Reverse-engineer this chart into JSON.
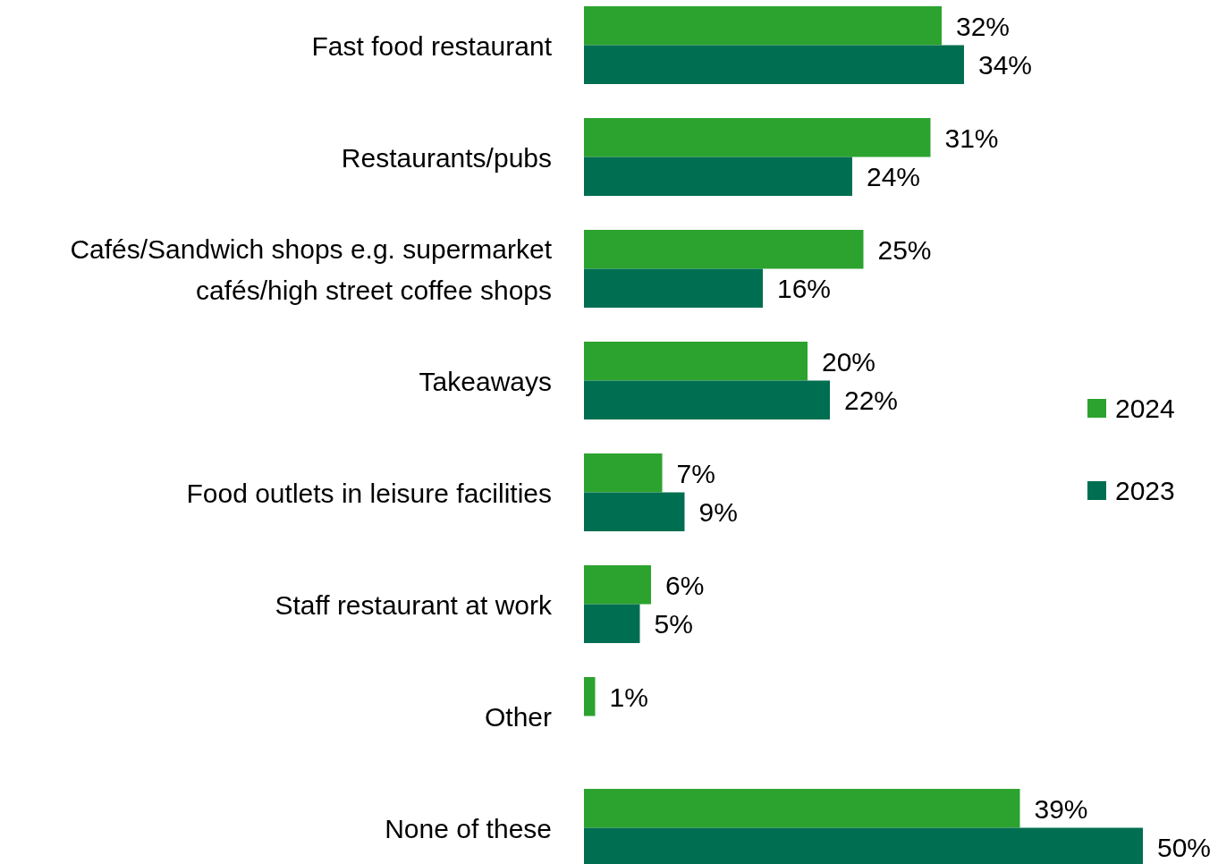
{
  "chart_data": {
    "type": "bar",
    "orientation": "horizontal",
    "categories": [
      "Fast food restaurant",
      "Restaurants/pubs",
      "Cafés/Sandwich shops e.g. supermarket cafés/high street coffee shops",
      "Takeaways",
      "Food outlets in leisure facilities",
      "Staff restaurant at work",
      "Other",
      "None of these"
    ],
    "series": [
      {
        "name": "2024",
        "color": "#2ca32e",
        "values": [
          32,
          31,
          25,
          20,
          7,
          6,
          1,
          39
        ],
        "value_labels": [
          "32%",
          "31%",
          "25%",
          "20%",
          "7%",
          "6%",
          "1%",
          "39%"
        ]
      },
      {
        "name": "2023",
        "color": "#006f51",
        "values": [
          34,
          24,
          16,
          22,
          9,
          5,
          null,
          50
        ],
        "value_labels": [
          "34%",
          "24%",
          "16%",
          "22%",
          "9%",
          "5%",
          null,
          "50%"
        ]
      }
    ],
    "legend": "right"
  }
}
